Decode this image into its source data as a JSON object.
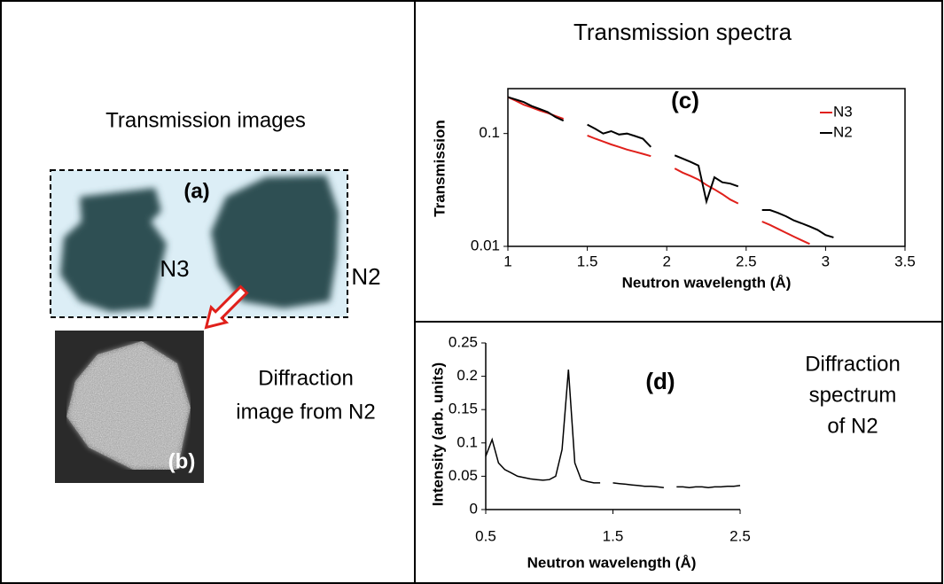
{
  "panels": {
    "left": {
      "title": "Transmission images",
      "label_a": "(a)",
      "label_n3": "N3",
      "label_n2": "N2",
      "label_b": "(b)",
      "caption": [
        "Diffraction",
        "image from N2"
      ]
    },
    "right_bottom": {
      "caption": [
        "Diffraction",
        "spectrum",
        "of N2"
      ]
    }
  },
  "chart_data": [
    {
      "type": "line",
      "title": "Transmission spectra",
      "panel_label": "(c)",
      "x_label": "Neutron wavelength (Å)",
      "y_label": "Transmission",
      "y_log": true,
      "legend": "upper right",
      "x": [
        1.0,
        1.05,
        1.1,
        1.15,
        1.2,
        1.25,
        1.3,
        1.35,
        1.4,
        1.45,
        1.5,
        1.55,
        1.6,
        1.65,
        1.7,
        1.75,
        1.8,
        1.85,
        1.9,
        1.95,
        2.0,
        2.05,
        2.1,
        2.15,
        2.2,
        2.25,
        2.3,
        2.35,
        2.4,
        2.45,
        2.5,
        2.55,
        2.6,
        2.65,
        2.7,
        2.75,
        2.8,
        2.85,
        2.9,
        2.95,
        3.0,
        3.05
      ],
      "series": [
        {
          "name": "N3",
          "color": "#e0201b",
          "values": [
            0.21,
            0.195,
            0.18,
            0.17,
            0.16,
            0.152,
            0.143,
            0.135,
            null,
            null,
            0.096,
            0.09,
            0.085,
            0.08,
            0.076,
            0.072,
            0.069,
            0.066,
            0.063,
            null,
            null,
            0.049,
            0.045,
            0.042,
            0.039,
            0.035,
            0.032,
            0.029,
            0.026,
            0.024,
            null,
            null,
            0.0166,
            0.0155,
            0.0143,
            0.0132,
            0.0122,
            0.0113,
            0.0105,
            null,
            null,
            null
          ]
        },
        {
          "name": "N2",
          "color": "#000000",
          "values": [
            0.21,
            0.2,
            0.19,
            0.175,
            0.165,
            0.155,
            0.14,
            0.13,
            null,
            null,
            0.12,
            0.11,
            0.1,
            0.105,
            0.098,
            0.1,
            0.095,
            0.09,
            0.076,
            null,
            null,
            0.064,
            0.06,
            0.056,
            0.052,
            0.025,
            0.041,
            0.037,
            0.036,
            0.034,
            null,
            null,
            0.021,
            0.021,
            0.0198,
            0.0185,
            0.017,
            0.016,
            0.015,
            0.014,
            0.0126,
            0.012
          ]
        }
      ],
      "xlim": [
        1,
        3.5
      ],
      "xticks": [
        1,
        1.5,
        2,
        2.5,
        3,
        3.5
      ],
      "ylim": [
        0.01,
        0.25
      ],
      "yticks": [
        0.01,
        0.1
      ]
    },
    {
      "type": "line",
      "panel_label": "(d)",
      "x_label": "Neutron wavelength (Å)",
      "y_label": "Intensity (arb. units)",
      "x": [
        0.5,
        0.55,
        0.6,
        0.65,
        0.7,
        0.75,
        0.8,
        0.85,
        0.9,
        0.95,
        1.0,
        1.05,
        1.1,
        1.15,
        1.2,
        1.25,
        1.3,
        1.35,
        1.4,
        1.45,
        1.5,
        1.55,
        1.6,
        1.65,
        1.7,
        1.75,
        1.8,
        1.85,
        1.9,
        1.95,
        2.0,
        2.05,
        2.1,
        2.15,
        2.2,
        2.25,
        2.3,
        2.35,
        2.4,
        2.45,
        2.5
      ],
      "series": [
        {
          "color": "#000000",
          "values": [
            0.08,
            0.105,
            0.07,
            0.06,
            0.055,
            0.05,
            0.048,
            0.046,
            0.045,
            0.044,
            0.045,
            0.05,
            0.09,
            0.21,
            0.07,
            0.045,
            0.042,
            0.04,
            0.04,
            null,
            0.04,
            0.039,
            0.038,
            0.037,
            0.036,
            0.035,
            0.035,
            0.034,
            0.033,
            null,
            0.034,
            0.034,
            0.033,
            0.034,
            0.034,
            0.033,
            0.034,
            0.034,
            0.035,
            0.035,
            0.036
          ]
        }
      ],
      "xlim": [
        0.5,
        2.5
      ],
      "xticks": [
        0.5,
        1.5,
        2.5
      ],
      "ylim": [
        0,
        0.25
      ],
      "yticks": [
        0,
        0.05,
        0.1,
        0.15,
        0.2,
        0.25
      ]
    }
  ]
}
